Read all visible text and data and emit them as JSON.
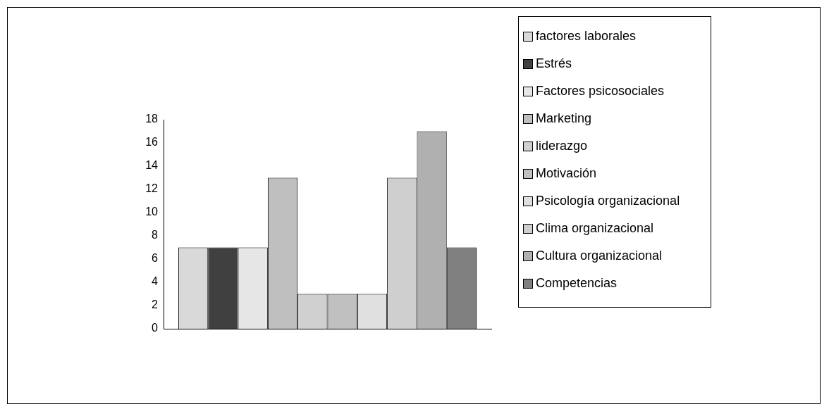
{
  "chart_data": {
    "type": "bar",
    "categories": [
      null
    ],
    "series": [
      {
        "name": "factores laborales",
        "color": "#d9d9d9",
        "values": [
          7
        ]
      },
      {
        "name": "Estrés",
        "color": "#404040",
        "values": [
          7
        ]
      },
      {
        "name": "Factores psicosociales",
        "color": "#e6e6e6",
        "values": [
          7
        ]
      },
      {
        "name": "Marketing",
        "color": "#bfbfbf",
        "values": [
          13
        ]
      },
      {
        "name": "liderazgo",
        "color": "#d0d0d0",
        "values": [
          3
        ]
      },
      {
        "name": "Motivación",
        "color": "#c0c0c0",
        "values": [
          3
        ]
      },
      {
        "name": "Psicología organizacional",
        "color": "#e0e0e0",
        "values": [
          3
        ]
      },
      {
        "name": "Clima organizacional",
        "color": "#cfcfcf",
        "values": [
          13
        ]
      },
      {
        "name": "Cultura organizacional",
        "color": "#b0b0b0",
        "values": [
          17
        ]
      },
      {
        "name": "Competencias",
        "color": "#808080",
        "values": [
          7
        ]
      }
    ],
    "ylim": [
      0,
      18
    ],
    "yticks": [
      0,
      2,
      4,
      6,
      8,
      10,
      12,
      14,
      16,
      18
    ],
    "legend": "right",
    "grid": false
  }
}
